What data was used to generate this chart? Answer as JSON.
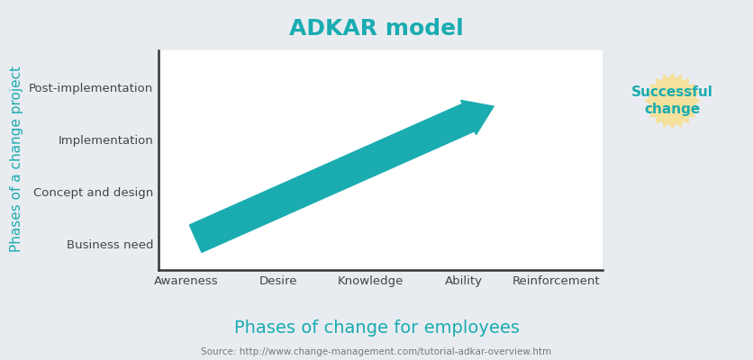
{
  "title": "ADKAR model",
  "title_color": "#1aacb0",
  "title_fontsize": 18,
  "title_fontweight": "bold",
  "background_color": "#e8ecf1",
  "plot_bg_color": "#ffffff",
  "xlabel": "Phases of change for employees",
  "xlabel_color": "#1aacb0",
  "xlabel_fontsize": 14,
  "ylabel": "Phases of a change project",
  "ylabel_color": "#1aacb0",
  "ylabel_fontsize": 11,
  "source_text": "Source: http://www.change-management.com/tutorial-adkar-overview.htm",
  "source_fontsize": 7.5,
  "x_labels": [
    "Awareness",
    "Desire",
    "Knowledge",
    "Ability",
    "Reinforcement"
  ],
  "y_labels": [
    "Business need",
    "Concept and design",
    "Implementation",
    "Post-implementation"
  ],
  "arrow_color": "#1aacb0",
  "badge_color": "#f5e19e",
  "badge_text_color": "#1aacb0",
  "badge_text": "Successful\nchange",
  "badge_fontsize": 11,
  "badge_fontweight": "bold",
  "tick_label_fontsize": 9.5,
  "axis_label_color": "#444444",
  "spine_color": "#333333"
}
